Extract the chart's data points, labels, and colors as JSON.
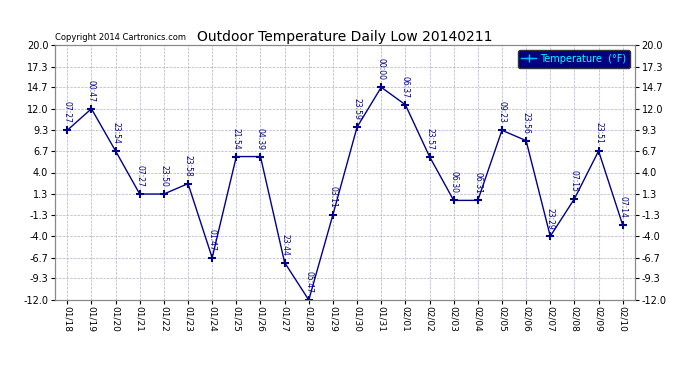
{
  "title": "Outdoor Temperature Daily Low 20140211",
  "copyright": "Copyright 2014 Cartronics.com",
  "legend_label": "Temperature  (°F)",
  "x_labels": [
    "01/18",
    "01/19",
    "01/20",
    "01/21",
    "01/22",
    "01/23",
    "01/24",
    "01/25",
    "01/26",
    "01/27",
    "01/28",
    "01/29",
    "01/30",
    "01/31",
    "02/01",
    "02/02",
    "02/03",
    "02/04",
    "02/05",
    "02/06",
    "02/07",
    "02/08",
    "02/09",
    "02/10"
  ],
  "y_values": [
    9.3,
    12.0,
    6.7,
    1.3,
    1.3,
    2.6,
    -6.7,
    6.0,
    6.0,
    -7.3,
    -12.0,
    -1.3,
    9.7,
    14.7,
    12.5,
    6.0,
    0.5,
    0.5,
    9.3,
    8.0,
    -4.0,
    0.7,
    6.7,
    -2.6
  ],
  "point_labels": [
    "07:27",
    "00:47",
    "23:54",
    "07:27",
    "23:50",
    "23:58",
    "01:47",
    "21:54",
    "04:39",
    "23:44",
    "05:47",
    "03:11",
    "23:59",
    "00:00",
    "06:37",
    "23:57",
    "06:30",
    "06:31",
    "09:23",
    "23:56",
    "23:29",
    "07:15",
    "23:51",
    "07:14"
  ],
  "ylim": [
    -12.0,
    20.0
  ],
  "yticks": [
    20.0,
    17.3,
    14.7,
    12.0,
    9.3,
    6.7,
    4.0,
    1.3,
    -1.3,
    -4.0,
    -6.7,
    -9.3,
    -12.0
  ],
  "line_color": "#00008b",
  "bg_color": "#ffffff",
  "plot_bg": "#ffffff",
  "title_color": "#000000",
  "axis_color": "#000000",
  "grid_color": "#b0b0c8",
  "legend_bg": "#000080",
  "legend_text_color": "#00ffff",
  "legend_line_color": "#00bfff"
}
